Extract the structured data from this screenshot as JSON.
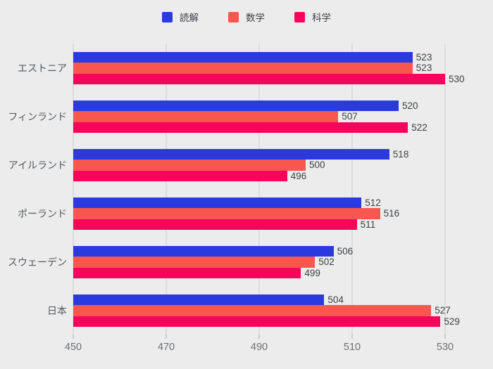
{
  "chart_data": {
    "type": "bar",
    "orientation": "horizontal",
    "title": "",
    "categories": [
      "エストニア",
      "フィンランド",
      "アイルランド",
      "ポーランド",
      "スウェーデン",
      "日本"
    ],
    "series": [
      {
        "key": "reading",
        "name": "読解",
        "color": "#2b3ade",
        "values": [
          523,
          520,
          518,
          512,
          506,
          504
        ]
      },
      {
        "key": "math",
        "name": "数学",
        "color": "#f8574f",
        "values": [
          523,
          507,
          500,
          516,
          502,
          527
        ]
      },
      {
        "key": "science",
        "name": "科学",
        "color": "#f7055c",
        "values": [
          530,
          522,
          496,
          511,
          499,
          529
        ]
      }
    ],
    "xlim": [
      450,
      539
    ],
    "x_ticks": [
      450,
      470,
      490,
      510,
      530
    ],
    "grid": true,
    "legend_position": "top",
    "value_labels": true,
    "background_color": "#ececec",
    "gridline_color": "#dcdcdc"
  }
}
